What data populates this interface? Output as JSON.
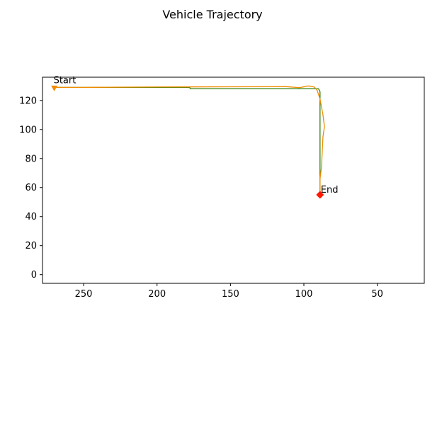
{
  "chart_data": {
    "type": "line",
    "title": "Vehicle Trajectory",
    "xlabel": "",
    "ylabel": "",
    "x_inverted": true,
    "xlim": [
      278,
      18
    ],
    "ylim": [
      -6,
      136
    ],
    "xticks": [
      250,
      200,
      150,
      100,
      50
    ],
    "yticks": [
      0,
      20,
      40,
      60,
      80,
      100,
      120
    ],
    "grid": false,
    "legend": "none",
    "colors": {
      "reference": "#2e7d00",
      "actual": "#f08c00",
      "start_marker": "#f08c00",
      "end_marker": "#ff1a00"
    },
    "series": [
      {
        "role": "reference",
        "points": [
          [
            270,
            129
          ],
          [
            178,
            129
          ],
          [
            177,
            128
          ],
          [
            90,
            128
          ],
          [
            89,
            126
          ],
          [
            89,
            57
          ]
        ]
      },
      {
        "role": "actual",
        "points": [
          [
            270,
            129
          ],
          [
            250,
            129
          ],
          [
            200,
            129.3
          ],
          [
            150,
            129.4
          ],
          [
            112,
            129.5
          ],
          [
            103,
            128.8
          ],
          [
            97,
            130
          ],
          [
            93,
            129.3
          ],
          [
            91,
            127
          ],
          [
            89,
            121
          ],
          [
            87,
            110
          ],
          [
            86,
            102
          ],
          [
            87,
            95
          ],
          [
            87.5,
            85
          ],
          [
            88,
            74
          ],
          [
            89,
            66
          ],
          [
            89,
            57
          ]
        ]
      }
    ],
    "annotations": [
      {
        "text": "Start",
        "x": 270,
        "y": 128.5,
        "marker": "triangle-down"
      },
      {
        "text": "End",
        "x": 89,
        "y": 55,
        "marker": "diamond"
      }
    ]
  }
}
